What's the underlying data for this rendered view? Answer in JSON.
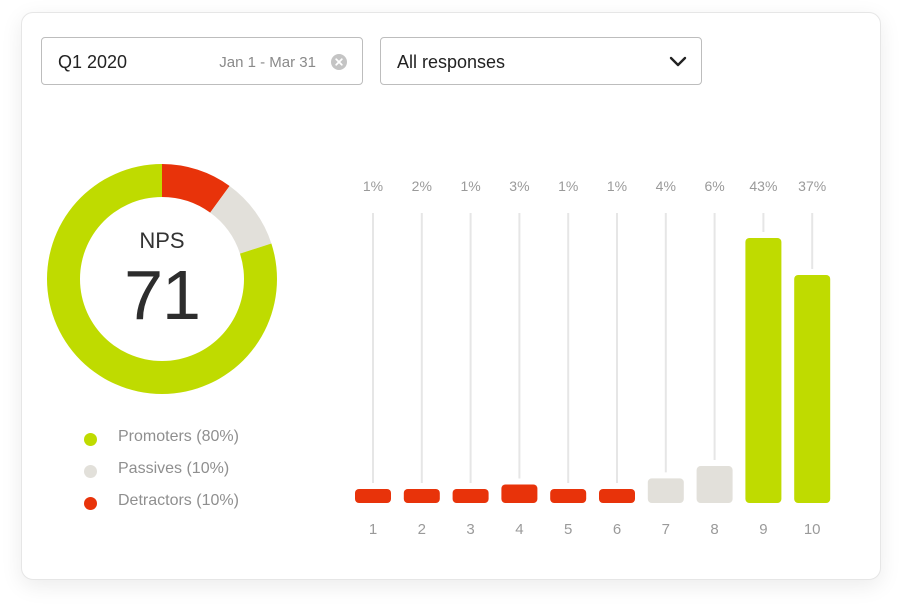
{
  "filters": {
    "period_label": "Q1 2020",
    "period_range": "Jan 1 - Mar 31",
    "clear_icon": "close-circle-icon",
    "responses_select": "All responses",
    "dropdown_icon": "chevron-down-icon"
  },
  "nps": {
    "label": "NPS",
    "value": "71"
  },
  "legend": [
    {
      "label": "Promoters (80%)",
      "color": "#bfdb00"
    },
    {
      "label": "Passives (10%)",
      "color": "#e2e0da"
    },
    {
      "label": "Detractors (10%)",
      "color": "#e8330a"
    }
  ],
  "chart_data": [
    {
      "type": "pie",
      "variant": "donut",
      "categories": [
        "Promoters",
        "Passives",
        "Detractors"
      ],
      "values": [
        80,
        10,
        10
      ],
      "colors": [
        "#bfdb00",
        "#e2e0da",
        "#e8330a"
      ],
      "center_label": "NPS",
      "center_value": 71
    },
    {
      "type": "bar",
      "categories": [
        "1",
        "2",
        "3",
        "4",
        "5",
        "6",
        "7",
        "8",
        "9",
        "10"
      ],
      "values": [
        1,
        2,
        1,
        3,
        1,
        1,
        4,
        6,
        43,
        37
      ],
      "labels": [
        "1%",
        "2%",
        "1%",
        "3%",
        "1%",
        "1%",
        "4%",
        "6%",
        "43%",
        "37%"
      ],
      "colors": [
        "#e8330a",
        "#e8330a",
        "#e8330a",
        "#e8330a",
        "#e8330a",
        "#e8330a",
        "#e2e0da",
        "#e2e0da",
        "#bfdb00",
        "#bfdb00"
      ],
      "ylim": [
        0,
        43
      ],
      "grid": false
    }
  ]
}
